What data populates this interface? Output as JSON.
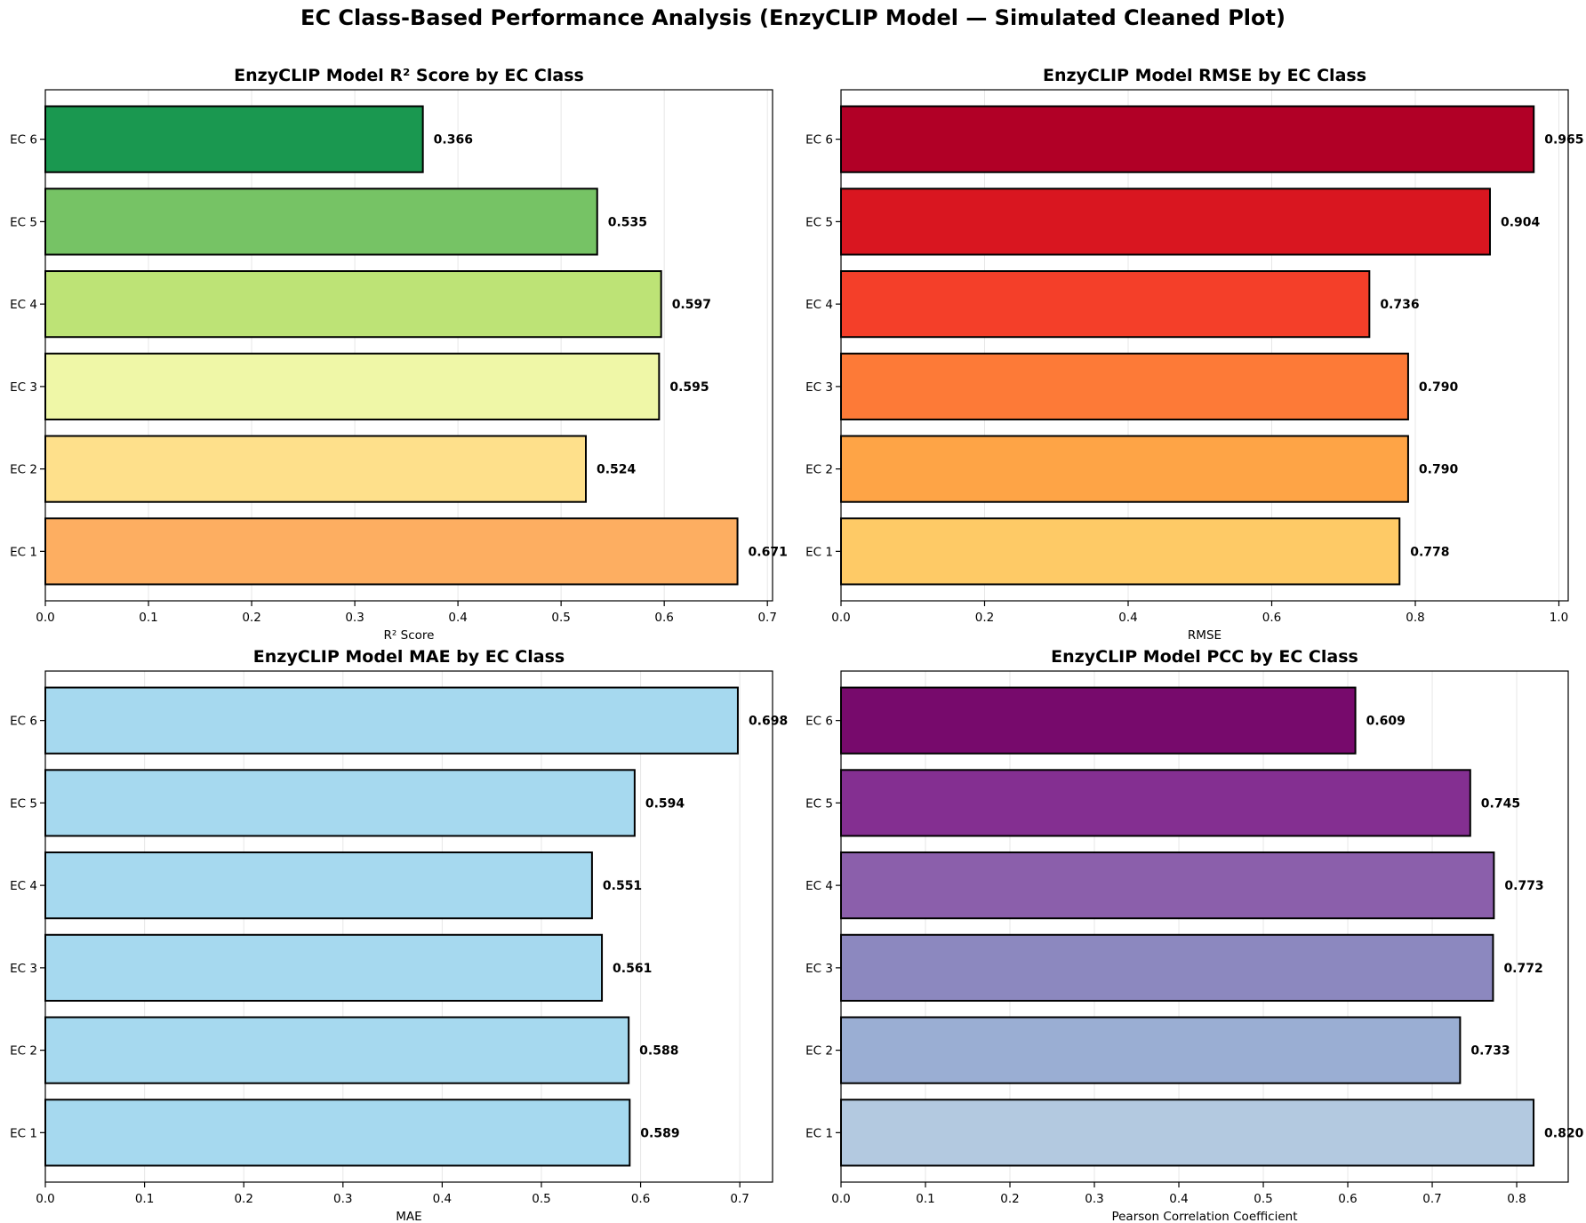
{
  "suptitle": "EC Class-Based Performance Analysis (EnzyCLIP Model — Simulated Cleaned Plot)",
  "chart_data": [
    {
      "type": "bar",
      "orientation": "horizontal",
      "title": "EnzyCLIP Model R² Score by EC Class",
      "xlabel": "R² Score",
      "ylabel": "",
      "categories": [
        "EC 1",
        "EC 2",
        "EC 3",
        "EC 4",
        "EC 5",
        "EC 6"
      ],
      "values": [
        0.671,
        0.524,
        0.595,
        0.597,
        0.535,
        0.366
      ],
      "labels": [
        "0.671",
        "0.524",
        "0.595",
        "0.597",
        "0.535",
        "0.366"
      ],
      "colors": [
        "#fdae61",
        "#fee08b",
        "#eff7a7",
        "#bde376",
        "#76c365",
        "#1a9850"
      ],
      "xlim": [
        0,
        0.705
      ],
      "xticks": [
        0,
        0.1,
        0.2,
        0.3,
        0.4,
        0.5,
        0.6,
        0.7
      ],
      "xtick_labels": [
        "0.0",
        "0.1",
        "0.2",
        "0.3",
        "0.4",
        "0.5",
        "0.6",
        "0.7"
      ],
      "grid": "x"
    },
    {
      "type": "bar",
      "orientation": "horizontal",
      "title": "EnzyCLIP Model RMSE by EC Class",
      "xlabel": "RMSE",
      "ylabel": "",
      "categories": [
        "EC 1",
        "EC 2",
        "EC 3",
        "EC 4",
        "EC 5",
        "EC 6"
      ],
      "values": [
        0.778,
        0.79,
        0.79,
        0.736,
        0.904,
        0.965
      ],
      "labels": [
        "0.778",
        "0.790",
        "0.790",
        "0.736",
        "0.904",
        "0.965"
      ],
      "colors": [
        "#feca66",
        "#fea446",
        "#fd7a37",
        "#f43f29",
        "#d91620",
        "#b10026"
      ],
      "xlim": [
        0,
        1.013
      ],
      "xticks": [
        0,
        0.2,
        0.4,
        0.6,
        0.8,
        1.0
      ],
      "xtick_labels": [
        "0.0",
        "0.2",
        "0.4",
        "0.6",
        "0.8",
        "1.0"
      ],
      "grid": "x"
    },
    {
      "type": "bar",
      "orientation": "horizontal",
      "title": "EnzyCLIP Model MAE by EC Class",
      "xlabel": "MAE",
      "ylabel": "",
      "categories": [
        "EC 1",
        "EC 2",
        "EC 3",
        "EC 4",
        "EC 5",
        "EC 6"
      ],
      "values": [
        0.589,
        0.588,
        0.561,
        0.551,
        0.594,
        0.698
      ],
      "labels": [
        "0.589",
        "0.588",
        "0.561",
        "0.551",
        "0.594",
        "0.698"
      ],
      "colors": [
        "#a6d9ef",
        "#a6d9ef",
        "#a6d9ef",
        "#a6d9ef",
        "#a6d9ef",
        "#a6d9ef"
      ],
      "xlim": [
        0,
        0.733
      ],
      "xticks": [
        0,
        0.1,
        0.2,
        0.3,
        0.4,
        0.5,
        0.6,
        0.7
      ],
      "xtick_labels": [
        "0.0",
        "0.1",
        "0.2",
        "0.3",
        "0.4",
        "0.5",
        "0.6",
        "0.7"
      ],
      "grid": "x"
    },
    {
      "type": "bar",
      "orientation": "horizontal",
      "title": "EnzyCLIP Model PCC by EC Class",
      "xlabel": "Pearson Correlation Coefficient",
      "ylabel": "",
      "categories": [
        "EC 1",
        "EC 2",
        "EC 3",
        "EC 4",
        "EC 5",
        "EC 6"
      ],
      "values": [
        0.82,
        0.733,
        0.772,
        0.773,
        0.745,
        0.609
      ],
      "labels": [
        "0.820",
        "0.733",
        "0.772",
        "0.773",
        "0.745",
        "0.609"
      ],
      "colors": [
        "#b3c9e0",
        "#9aaed3",
        "#8c88bf",
        "#8b5fab",
        "#842f91",
        "#770a6c"
      ],
      "xlim": [
        0,
        0.861
      ],
      "xticks": [
        0,
        0.1,
        0.2,
        0.3,
        0.4,
        0.5,
        0.6,
        0.7,
        0.8
      ],
      "xtick_labels": [
        "0.0",
        "0.1",
        "0.2",
        "0.3",
        "0.4",
        "0.5",
        "0.6",
        "0.7",
        "0.8"
      ],
      "grid": "x"
    }
  ]
}
